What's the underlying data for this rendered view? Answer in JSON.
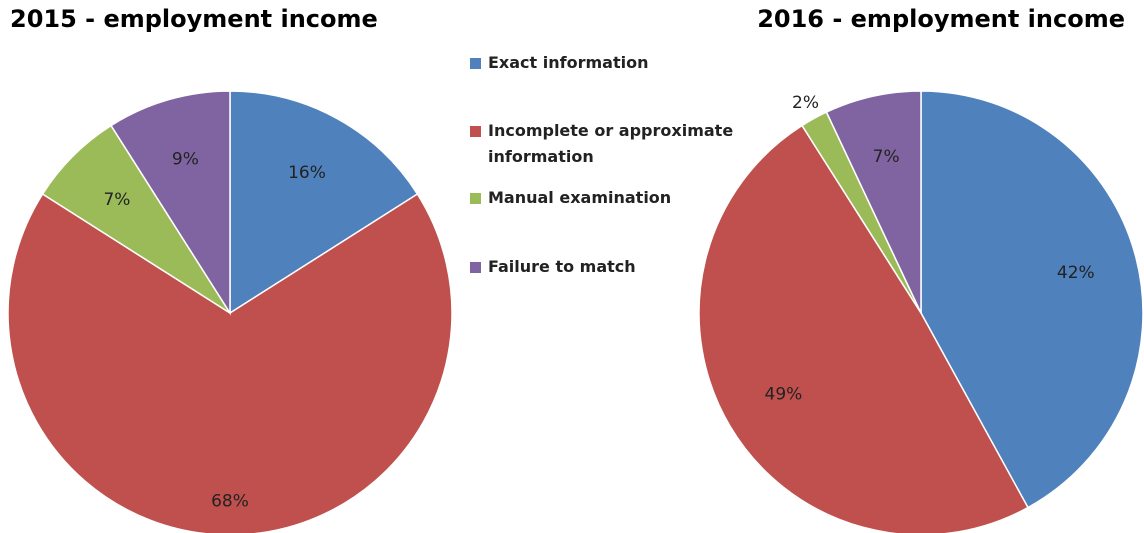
{
  "chart_data": [
    {
      "type": "pie",
      "title": "2015 - employment income",
      "categories": [
        "Exact information",
        "Incomplete or approximate information",
        "Manual examination",
        "Failure to match"
      ],
      "values": [
        16,
        68,
        7,
        9
      ],
      "value_labels": [
        "16%",
        "68%",
        "7%",
        "9%"
      ],
      "colors": [
        "#4f81bd",
        "#c0504d",
        "#9bbb59",
        "#8064a2"
      ],
      "legend": "right"
    },
    {
      "type": "pie",
      "title": "2016 - employment income",
      "categories": [
        "Exact information",
        "Incomplete or approximate information",
        "Manual examination",
        "Failure to match"
      ],
      "values": [
        42,
        49,
        2,
        7
      ],
      "value_labels": [
        "42%",
        "49%",
        "2%",
        "7%"
      ],
      "colors": [
        "#4f81bd",
        "#c0504d",
        "#9bbb59",
        "#8064a2"
      ]
    }
  ]
}
